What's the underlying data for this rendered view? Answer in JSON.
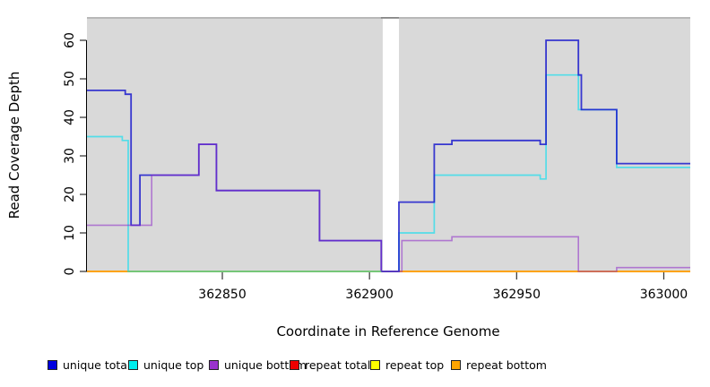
{
  "chart_data": {
    "type": "line",
    "step": true,
    "title": "",
    "xlabel": "Coordinate in Reference Genome",
    "ylabel": "Read Coverage Depth",
    "xlim": [
      362804,
      363009
    ],
    "ylim": [
      0,
      66
    ],
    "x_ticks": [
      362850,
      362900,
      362950,
      363000
    ],
    "y_ticks": [
      0,
      10,
      20,
      30,
      40,
      50,
      60
    ],
    "grid": false,
    "legend_position": "bottom",
    "panel_bg": "#d9d9d9",
    "panel_border_top": "#a6a6a6",
    "gap_region": {
      "from": 362904.5,
      "to": 362910,
      "color": "#ffffff",
      "top_border": "#858585"
    },
    "series": [
      {
        "name": "repeat total",
        "color": "#e00000",
        "opacity": 0.9,
        "width": 1.4,
        "points": [
          [
            362804,
            0
          ],
          [
            363009,
            0
          ]
        ]
      },
      {
        "name": "repeat top",
        "color": "#f5f500",
        "opacity": 0.9,
        "width": 1.4,
        "points": [
          [
            362804,
            0
          ],
          [
            363009,
            0
          ]
        ]
      },
      {
        "name": "repeat bottom",
        "color": "#ff9d00",
        "opacity": 0.95,
        "width": 1.8,
        "points": [
          [
            362804,
            0
          ],
          [
            363009,
            0
          ]
        ]
      },
      {
        "name": "unique top",
        "color": "#00dff0",
        "opacity": 0.62,
        "width": 1.7,
        "points": [
          [
            362804,
            35
          ],
          [
            362816,
            34
          ],
          [
            362818,
            0
          ],
          [
            362904,
            0
          ],
          [
            362910,
            10
          ],
          [
            362922,
            25
          ],
          [
            362958,
            24
          ],
          [
            362960,
            51
          ],
          [
            362971,
            42
          ],
          [
            362984,
            27
          ],
          [
            363009,
            27
          ]
        ]
      },
      {
        "name": "unique total",
        "color": "#1a1acd",
        "opacity": 0.85,
        "width": 1.8,
        "points": [
          [
            362804,
            47
          ],
          [
            362817,
            46
          ],
          [
            362819,
            12
          ],
          [
            362822,
            25
          ],
          [
            362842,
            33
          ],
          [
            362848,
            21
          ],
          [
            362883,
            8
          ],
          [
            362904,
            0
          ],
          [
            362910,
            18
          ],
          [
            362922,
            33
          ],
          [
            362928,
            34
          ],
          [
            362958,
            33
          ],
          [
            362960,
            60
          ],
          [
            362971,
            51
          ],
          [
            362972,
            42
          ],
          [
            362984,
            28
          ],
          [
            363009,
            28
          ]
        ]
      },
      {
        "name": "unique bottom",
        "color": "#8c26c8",
        "opacity": 0.55,
        "width": 1.6,
        "points": [
          [
            362804,
            12
          ],
          [
            362826,
            25
          ],
          [
            362842,
            33
          ],
          [
            362848,
            21
          ],
          [
            362883,
            8
          ],
          [
            362904,
            0
          ],
          [
            362911,
            8
          ],
          [
            362928,
            9
          ],
          [
            362971,
            0
          ],
          [
            362984,
            1
          ],
          [
            363009,
            1
          ]
        ]
      }
    ],
    "baseline_overlap": {
      "color": "#70c878",
      "width": 1.5,
      "from": 362818,
      "to": 362904,
      "value": 0
    }
  },
  "legend": {
    "items": [
      {
        "label": "unique total",
        "color": "#0000e0"
      },
      {
        "label": "unique top",
        "color": "#00eeee"
      },
      {
        "label": "unique bottom",
        "color": "#9932cc"
      },
      {
        "label": "repeat total",
        "color": "#ee0000"
      },
      {
        "label": "repeat top",
        "color": "#ffff00"
      },
      {
        "label": "repeat bottom",
        "color": "#ffa500"
      }
    ]
  }
}
